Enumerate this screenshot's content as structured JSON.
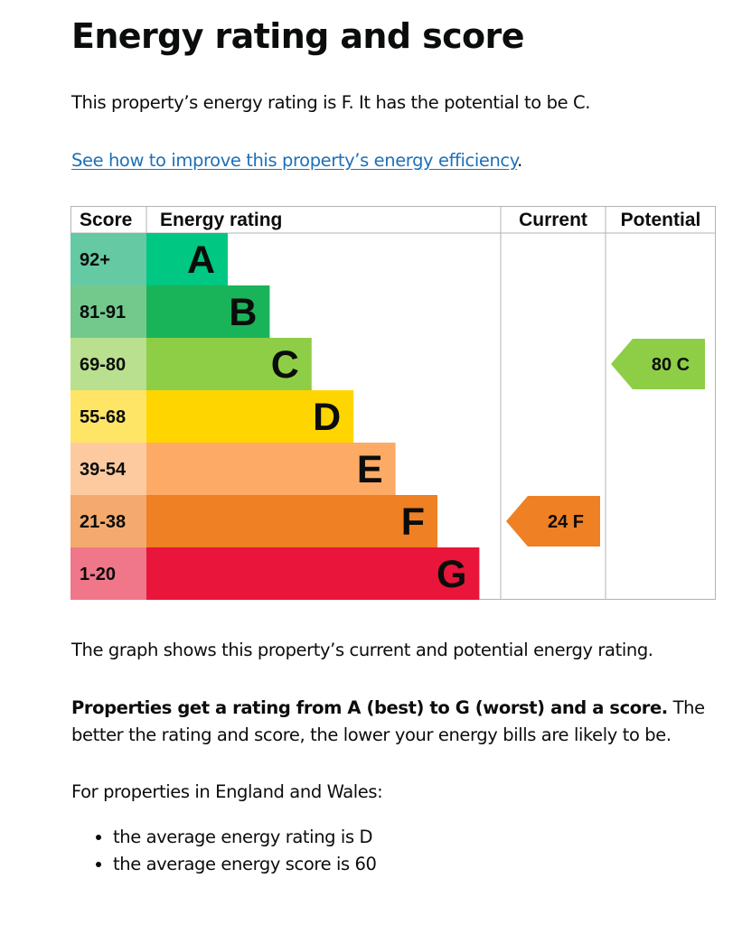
{
  "page": {
    "title": "Energy rating and score",
    "intro": "This property’s energy rating is F. It has the potential to be C.",
    "link_text": "See how to improve this property’s energy efficiency",
    "link_suffix": ".",
    "graph_caption": "The graph shows this property’s current and potential energy rating.",
    "rating_info_bold": "Properties get a rating from A (best) to G (worst) and a score.",
    "rating_info_rest": " The better the rating and score, the lower your energy bills are likely to be.",
    "region_intro": "For properties in England and Wales:",
    "averages": [
      "the average energy rating is D",
      "the average energy score is 60"
    ]
  },
  "chart_data": {
    "type": "bar",
    "headers": {
      "score": "Score",
      "rating": "Energy rating",
      "current": "Current",
      "potential": "Potential"
    },
    "bands": [
      {
        "letter": "A",
        "range": "92+",
        "color": "#00c781",
        "score_bg": "#65c9a3"
      },
      {
        "letter": "B",
        "range": "81-91",
        "color": "#19b459",
        "score_bg": "#73c98c"
      },
      {
        "letter": "C",
        "range": "69-80",
        "color": "#8dce46",
        "score_bg": "#b9e08e"
      },
      {
        "letter": "D",
        "range": "55-68",
        "color": "#ffd500",
        "score_bg": "#ffe566"
      },
      {
        "letter": "E",
        "range": "39-54",
        "color": "#fcaa65",
        "score_bg": "#fdcaa0"
      },
      {
        "letter": "F",
        "range": "21-38",
        "color": "#ef8023",
        "score_bg": "#f4aa6e"
      },
      {
        "letter": "G",
        "range": "1-20",
        "color": "#e9153b",
        "score_bg": "#f07689"
      }
    ],
    "current": {
      "score": 24,
      "rating": "F",
      "label": "24  F",
      "color": "#ef8023"
    },
    "potential": {
      "score": 80,
      "rating": "C",
      "label": "80  C",
      "color": "#8dce46"
    }
  }
}
